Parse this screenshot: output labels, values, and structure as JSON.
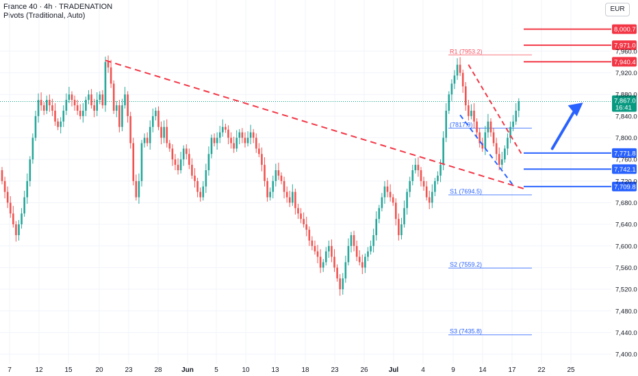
{
  "header": {
    "line1": "France 40 · 4h · TRADENATION",
    "line2": "Pivots (Traditional, Auto)",
    "currency": "EUR"
  },
  "colors": {
    "bull": "#26a69a",
    "bear": "#ef5350",
    "red_level": "#f23645",
    "blue_level": "#2962ff",
    "pivot_red": "#f7525f",
    "pivot_blue": "#2962ff",
    "current_price_bg": "#089981",
    "trendline": "#f23645"
  },
  "chart_data": {
    "type": "candlestick",
    "timeframe": "4h",
    "y_ticks": [
      7400,
      7440,
      7480,
      7520,
      7560,
      7600,
      7640,
      7680,
      7720,
      7760,
      7800,
      7840,
      7880,
      7920,
      7960
    ],
    "y_tick_labels": [
      "7,400.0",
      "7,440.0",
      "7,480.0",
      "7,520.0",
      "7,560.0",
      "7,600.0",
      "7,640.0",
      "7,680.0",
      "7,720.0",
      "7,760.0",
      "7,800.0",
      "7,840.0",
      "7,880.0",
      "7,920.0",
      "7,960.0"
    ],
    "x_tick_labels": [
      "7",
      "12",
      "15",
      "20",
      "23",
      "28",
      "Jun",
      "5",
      "10",
      "13",
      "18",
      "23",
      "26",
      "Jul",
      "4",
      "9",
      "14",
      "17",
      "22",
      "25"
    ],
    "x_tick_bold": [
      "Jun",
      "Jul"
    ],
    "current_price": 7867.0,
    "current_price_label": "7,867.0",
    "countdown": "16:41",
    "price_levels": [
      {
        "value": 8000.7,
        "label": "8,000.7",
        "color": "red"
      },
      {
        "value": 7971.0,
        "label": "7,971.0",
        "color": "red"
      },
      {
        "value": 7940.4,
        "label": "7,940.4",
        "color": "red"
      },
      {
        "value": 7771.8,
        "label": "7,771.8",
        "color": "blue"
      },
      {
        "value": 7742.1,
        "label": "7,742.1",
        "color": "blue"
      },
      {
        "value": 7709.8,
        "label": "7,709.8",
        "color": "blue"
      }
    ],
    "pivots": [
      {
        "name": "R1",
        "value": 7953.2,
        "label": "R1 (7953.2)"
      },
      {
        "name": "P",
        "value": 7817.9,
        "label": "(7817.9)"
      },
      {
        "name": "S1",
        "value": 7694.5,
        "label": "S1 (7694.5)"
      },
      {
        "name": "S2",
        "value": 7559.2,
        "label": "S2 (7559.2)"
      },
      {
        "name": "S3",
        "value": 7435.8,
        "label": "S3 (7435.8)"
      }
    ],
    "trendlines": [
      {
        "name": "descending-resistance",
        "from": {
          "bar": 37,
          "price": 7943
        },
        "to": {
          "bar": 188,
          "price": 7704
        }
      },
      {
        "name": "channel-upper",
        "from": {
          "bar": 167,
          "price": 7935
        },
        "to": {
          "bar": 186,
          "price": 7770
        }
      },
      {
        "name": "channel-lower",
        "from": {
          "bar": 164,
          "price": 7842
        },
        "to": {
          "bar": 183,
          "price": 7712
        }
      }
    ],
    "projection_arrow": {
      "from": {
        "bar": 197,
        "price": 7780
      },
      "to": {
        "bar": 208,
        "price": 7865
      }
    },
    "closes": [
      7720,
      7700,
      7680,
      7660,
      7640,
      7620,
      7640,
      7660,
      7690,
      7720,
      7760,
      7800,
      7840,
      7870,
      7860,
      7850,
      7870,
      7860,
      7850,
      7830,
      7820,
      7830,
      7850,
      7870,
      7880,
      7870,
      7860,
      7850,
      7840,
      7850,
      7870,
      7880,
      7860,
      7850,
      7870,
      7880,
      7860,
      7940,
      7930,
      7900,
      7850,
      7860,
      7820,
      7860,
      7880,
      7840,
      7790,
      7720,
      7690,
      7720,
      7790,
      7800,
      7790,
      7820,
      7840,
      7850,
      7820,
      7800,
      7820,
      7790,
      7780,
      7760,
      7750,
      7740,
      7760,
      7780,
      7770,
      7750,
      7730,
      7720,
      7700,
      7690,
      7710,
      7740,
      7770,
      7800,
      7790,
      7800,
      7810,
      7820,
      7815,
      7800,
      7790,
      7780,
      7800,
      7810,
      7800,
      7790,
      7800,
      7810,
      7800,
      7780,
      7770,
      7750,
      7720,
      7690,
      7700,
      7720,
      7740,
      7730,
      7720,
      7700,
      7690,
      7680,
      7700,
      7670,
      7660,
      7650,
      7640,
      7630,
      7610,
      7600,
      7590,
      7580,
      7560,
      7570,
      7590,
      7600,
      7580,
      7560,
      7540,
      7520,
      7540,
      7570,
      7600,
      7620,
      7600,
      7580,
      7570,
      7560,
      7580,
      7590,
      7600,
      7620,
      7650,
      7670,
      7690,
      7710,
      7700,
      7690,
      7680,
      7650,
      7620,
      7640,
      7670,
      7700,
      7720,
      7740,
      7750,
      7740,
      7720,
      7710,
      7690,
      7680,
      7700,
      7720,
      7730,
      7750,
      7800,
      7850,
      7880,
      7900,
      7915,
      7935,
      7920,
      7895,
      7860,
      7840,
      7850,
      7830,
      7810,
      7790,
      7780,
      7810,
      7830,
      7810,
      7790,
      7770,
      7750,
      7760,
      7780,
      7800,
      7820,
      7830,
      7850,
      7867
    ]
  }
}
